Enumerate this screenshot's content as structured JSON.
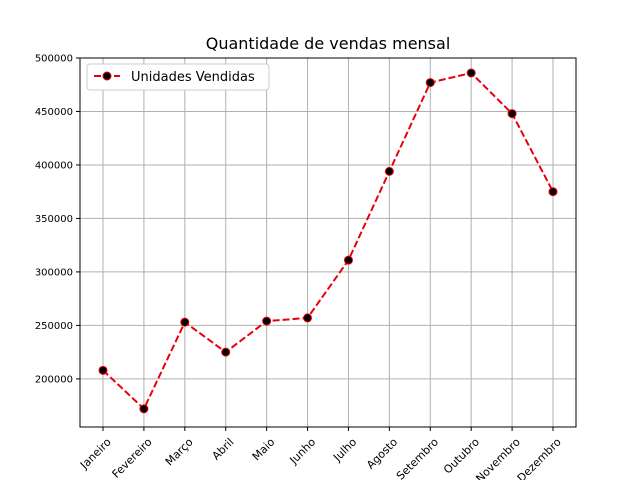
{
  "chart_data": {
    "type": "line",
    "title": "Quantidade de vendas mensal",
    "xlabel": "",
    "ylabel": "",
    "categories": [
      "Janeiro",
      "Fevereiro",
      "Março",
      "Abril",
      "Maio",
      "Junho",
      "Julho",
      "Agosto",
      "Setembro",
      "Outubro",
      "Novembro",
      "Dezembro"
    ],
    "series": [
      {
        "name": "Unidades Vendidas",
        "color": "#e8000b",
        "marker_color": "#000000",
        "line_style": "dashed",
        "values": [
          208000,
          172000,
          253000,
          225000,
          254000,
          257000,
          311000,
          394000,
          477000,
          486000,
          448000,
          375000
        ]
      }
    ],
    "ylim": [
      155000,
      500000
    ],
    "yticks": [
      {
        "value": 200000,
        "label": "200000"
      },
      {
        "value": 250000,
        "label": "250000"
      },
      {
        "value": 300000,
        "label": "300000"
      },
      {
        "value": 350000,
        "label": "350000"
      },
      {
        "value": 400000,
        "label": "400000"
      },
      {
        "value": 450000,
        "label": "450000"
      },
      {
        "value": 500000,
        "label": "500000"
      }
    ],
    "grid": true,
    "legend_position": "top-left",
    "x_tick_rotation": 45
  }
}
